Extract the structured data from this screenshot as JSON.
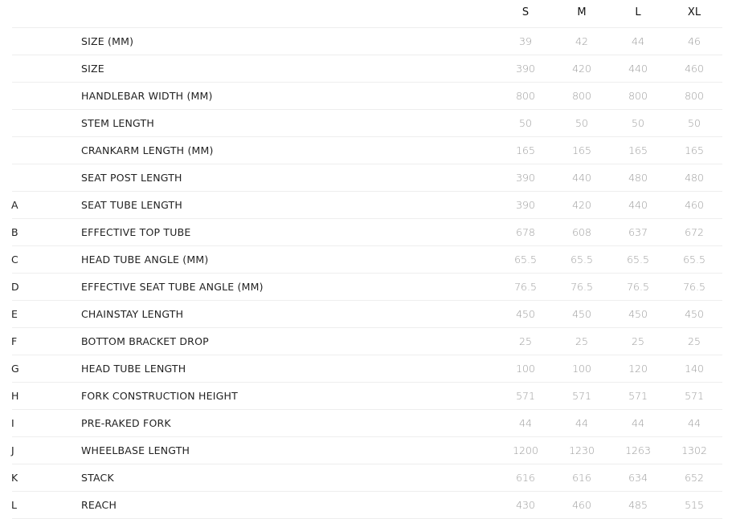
{
  "columns": [
    "S",
    "M",
    "L",
    "XL"
  ],
  "rows": [
    {
      "letter": "",
      "label": "SIZE (MM)",
      "values": [
        "39",
        "42",
        "44",
        "46"
      ]
    },
    {
      "letter": "",
      "label": "SIZE",
      "values": [
        "390",
        "420",
        "440",
        "460"
      ]
    },
    {
      "letter": "",
      "label": "HANDLEBAR WIDTH (MM)",
      "values": [
        "800",
        "800",
        "800",
        "800"
      ]
    },
    {
      "letter": "",
      "label": "STEM LENGTH",
      "values": [
        "50",
        "50",
        "50",
        "50"
      ]
    },
    {
      "letter": "",
      "label": "CRANKARM LENGTH (MM)",
      "values": [
        "165",
        "165",
        "165",
        "165"
      ]
    },
    {
      "letter": "",
      "label": "SEAT POST LENGTH",
      "values": [
        "390",
        "440",
        "480",
        "480"
      ]
    },
    {
      "letter": "A",
      "label": "SEAT TUBE LENGTH",
      "values": [
        "390",
        "420",
        "440",
        "460"
      ]
    },
    {
      "letter": "B",
      "label": "EFFECTIVE TOP TUBE",
      "values": [
        "678",
        "608",
        "637",
        "672"
      ]
    },
    {
      "letter": "C",
      "label": "HEAD TUBE ANGLE (MM)",
      "values": [
        "65.5",
        "65.5",
        "65.5",
        "65.5"
      ]
    },
    {
      "letter": "D",
      "label": "EFFECTIVE SEAT TUBE ANGLE (MM)",
      "values": [
        "76.5",
        "76.5",
        "76.5",
        "76.5"
      ]
    },
    {
      "letter": "E",
      "label": "CHAINSTAY LENGTH",
      "values": [
        "450",
        "450",
        "450",
        "450"
      ]
    },
    {
      "letter": "F",
      "label": "BOTTOM BRACKET DROP",
      "values": [
        "25",
        "25",
        "25",
        "25"
      ]
    },
    {
      "letter": "G",
      "label": "HEAD TUBE LENGTH",
      "values": [
        "100",
        "100",
        "120",
        "140"
      ]
    },
    {
      "letter": "H",
      "label": "FORK CONSTRUCTION HEIGHT",
      "values": [
        "571",
        "571",
        "571",
        "571"
      ]
    },
    {
      "letter": "I",
      "label": "PRE-RAKED FORK",
      "values": [
        "44",
        "44",
        "44",
        "44"
      ]
    },
    {
      "letter": "J",
      "label": "WHEELBASE LENGTH",
      "values": [
        "1200",
        "1230",
        "1263",
        "1302"
      ]
    },
    {
      "letter": "K",
      "label": "STACK",
      "values": [
        "616",
        "616",
        "634",
        "652"
      ]
    },
    {
      "letter": "L",
      "label": "REACH",
      "values": [
        "430",
        "460",
        "485",
        "515"
      ]
    }
  ]
}
